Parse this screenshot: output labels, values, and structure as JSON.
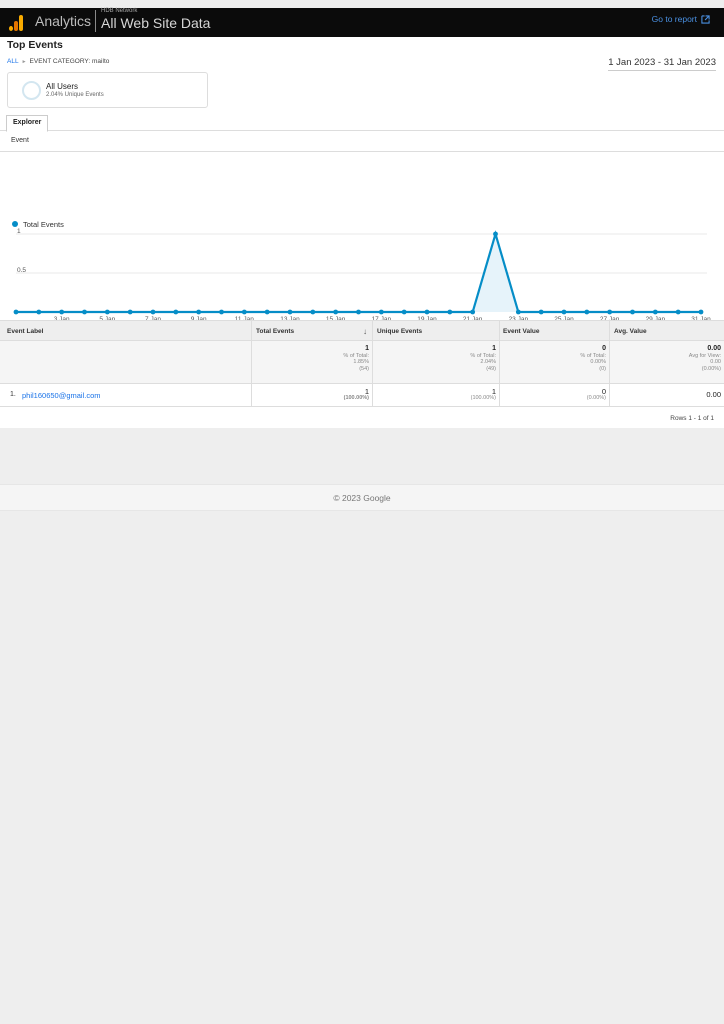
{
  "header": {
    "app_name": "Analytics",
    "account_name": "HDB Network",
    "property_name": "All Web Site Data",
    "go_to_report": "Go to report"
  },
  "report": {
    "title": "Top Events",
    "breadcrumb_all": "ALL",
    "breadcrumb_filter": "EVENT CATEGORY: mailto",
    "date_range": "1 Jan 2023 - 31 Jan 2023"
  },
  "segment": {
    "name": "All Users",
    "detail": "2.04% Unique Events"
  },
  "tabs": {
    "explorer": "Explorer",
    "subtab": "Event"
  },
  "chart_data": {
    "type": "area",
    "series": [
      {
        "name": "Total Events",
        "color": "#058dc7",
        "x": [
          "1 Jan",
          "2 Jan",
          "3 Jan",
          "4 Jan",
          "5 Jan",
          "6 Jan",
          "7 Jan",
          "8 Jan",
          "9 Jan",
          "10 Jan",
          "11 Jan",
          "12 Jan",
          "13 Jan",
          "14 Jan",
          "15 Jan",
          "16 Jan",
          "17 Jan",
          "18 Jan",
          "19 Jan",
          "20 Jan",
          "21 Jan",
          "22 Jan",
          "23 Jan",
          "24 Jan",
          "25 Jan",
          "26 Jan",
          "27 Jan",
          "28 Jan",
          "29 Jan",
          "30 Jan",
          "31 Jan"
        ],
        "values": [
          0,
          0,
          0,
          0,
          0,
          0,
          0,
          0,
          0,
          0,
          0,
          0,
          0,
          0,
          0,
          0,
          0,
          0,
          0,
          0,
          0,
          1,
          0,
          0,
          0,
          0,
          0,
          0,
          0,
          0,
          0
        ]
      }
    ],
    "x_tick_labels": [
      "...",
      "3 Jan",
      "5 Jan",
      "7 Jan",
      "9 Jan",
      "11 Jan",
      "13 Jan",
      "15 Jan",
      "17 Jan",
      "19 Jan",
      "21 Jan",
      "23 Jan",
      "25 Jan",
      "27 Jan",
      "29 Jan",
      "31 Jan"
    ],
    "y_tick_labels": [
      "1",
      "0.5"
    ],
    "ylim": [
      0,
      1
    ],
    "legend_position": "top-left",
    "grid": true
  },
  "table": {
    "columns": {
      "label": "Event Label",
      "total": "Total Events",
      "unique": "Unique Events",
      "value": "Event Value",
      "avg": "Avg. Value"
    },
    "sort_icon": "arrow-down-icon",
    "totals": {
      "total": {
        "value": "1",
        "line1": "% of Total:",
        "line2": "1.85%",
        "line3": "(54)"
      },
      "unique": {
        "value": "1",
        "line1": "% of Total:",
        "line2": "2.04%",
        "line3": "(49)"
      },
      "value": {
        "value": "0",
        "line1": "% of Total:",
        "line2": "0.00%",
        "line3": "(0)"
      },
      "avg": {
        "value": "0.00",
        "line1": "Avg for View:",
        "line2": "0.00",
        "line3": "(0.00%)"
      }
    },
    "rows": [
      {
        "index": "1.",
        "label": "phil160650@gmail.com",
        "total": "1",
        "total_pct": "(100.00%)",
        "unique": "1",
        "unique_pct": "(100.00%)",
        "value": "0",
        "value_pct": "(0.00%)",
        "avg": "0.00"
      }
    ],
    "rows_info": "Rows 1 - 1 of 1"
  },
  "footer": {
    "copyright": "© 2023 Google"
  },
  "colors": {
    "accent": "#058dc7",
    "link": "#1a73e8",
    "topbar": "#0b0b0b"
  }
}
